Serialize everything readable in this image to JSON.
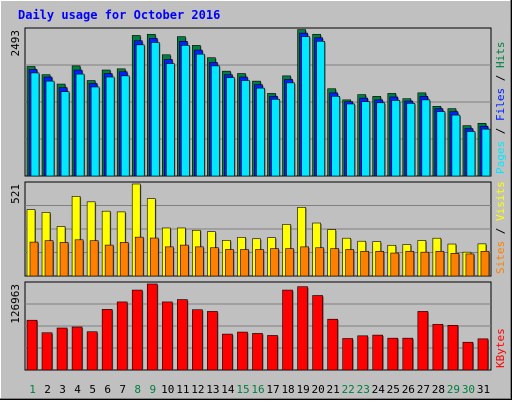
{
  "chart_data": {
    "type": "bar",
    "title": "Daily usage for October 2016",
    "categories": [
      "1",
      "2",
      "3",
      "4",
      "5",
      "6",
      "7",
      "8",
      "9",
      "10",
      "11",
      "12",
      "13",
      "14",
      "15",
      "16",
      "17",
      "18",
      "19",
      "20",
      "21",
      "22",
      "23",
      "24",
      "25",
      "26",
      "27",
      "28",
      "29",
      "30",
      "31"
    ],
    "weekend_days": [
      "1",
      "8",
      "9",
      "15",
      "16",
      "22",
      "23",
      "29",
      "30"
    ],
    "panels": [
      {
        "id": "pages-files-hits",
        "max_label": "2493",
        "ylim": [
          0,
          2493
        ],
        "series": [
          {
            "name": "Hits",
            "color": "#008040",
            "values": [
              1870,
              1730,
              1570,
              1880,
              1630,
              1810,
              1830,
              2400,
              2420,
              2070,
              2380,
              2230,
              2020,
              1790,
              1750,
              1620,
              1410,
              1710,
              2500,
              2420,
              1490,
              1300,
              1390,
              1360,
              1410,
              1320,
              1420,
              1190,
              1150,
              860,
              900
            ]
          },
          {
            "name": "Files",
            "color": "#0020ff",
            "values": [
              1820,
              1690,
              1510,
              1810,
              1580,
              1750,
              1780,
              2310,
              2350,
              1990,
              2300,
              2150,
              1940,
              1730,
              1690,
              1560,
              1360,
              1650,
              2440,
              2360,
              1420,
              1270,
              1330,
              1300,
              1350,
              1280,
              1360,
              1150,
              1100,
              810,
              850
            ]
          },
          {
            "name": "Pages",
            "color": "#00e8ff",
            "values": [
              1760,
              1620,
              1440,
              1740,
              1520,
              1690,
              1710,
              2240,
              2280,
              1920,
              2230,
              2080,
              1880,
              1680,
              1630,
              1500,
              1310,
              1590,
              2380,
              2300,
              1360,
              1230,
              1270,
              1250,
              1290,
              1240,
              1300,
              1100,
              1040,
              760,
              800
            ]
          }
        ],
        "axis_label": [
          "Pages",
          " / ",
          "Files",
          " / ",
          "Hits"
        ]
      },
      {
        "id": "visits-sites",
        "max_label": "521",
        "ylim": [
          0,
          521
        ],
        "series": [
          {
            "name": "Visits",
            "color": "#ffff00",
            "values": [
              376,
              360,
              280,
              451,
              420,
              367,
              363,
              521,
              438,
              272,
              272,
              259,
              251,
              202,
              219,
              211,
              217,
              292,
              389,
              300,
              263,
              214,
              197,
              195,
              174,
              178,
              201,
              214,
              181,
              135,
              182
            ]
          },
          {
            "name": "Sites",
            "color": "#ff8000",
            "values": [
              192,
              200,
              190,
              205,
              200,
              175,
              190,
              220,
              215,
              165,
              175,
              165,
              160,
              150,
              150,
              150,
              155,
              155,
              165,
              160,
              155,
              150,
              140,
              140,
              130,
              140,
              135,
              140,
              128,
              125,
              140
            ]
          }
        ],
        "axis_label": [
          "Sites",
          " / ",
          "Visits"
        ]
      },
      {
        "id": "kbytes",
        "max_label": "126963",
        "ylim": [
          0,
          126963
        ],
        "series": [
          {
            "name": "KBytes",
            "color": "#ff0000",
            "values": [
              73500,
              55000,
              62000,
              63500,
              56500,
              89500,
              100500,
              118000,
              127000,
              100500,
              104000,
              89000,
              86500,
              53000,
              56000,
              54000,
              51000,
              118000,
              123000,
              110000,
              75000,
              46500,
              50500,
              51500,
              47000,
              47000,
              86500,
              67500,
              66000,
              41000,
              46000
            ]
          }
        ],
        "axis_label": [
          "KBytes"
        ]
      }
    ]
  },
  "colors": {
    "background": "#c0c0c0",
    "title": "#0000ff",
    "weekday_label": "#0000ff",
    "weekend_label": "#008040",
    "grid": "#808080"
  }
}
